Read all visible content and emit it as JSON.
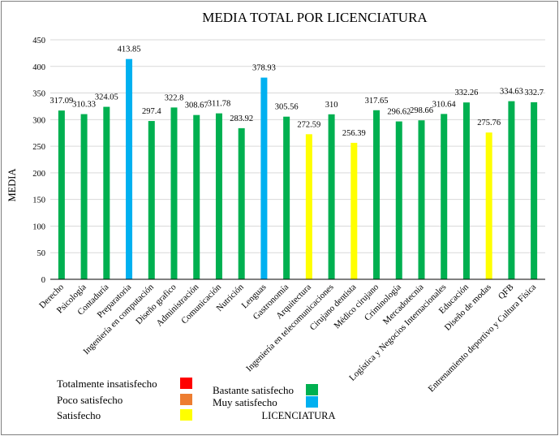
{
  "chart_data": {
    "type": "bar",
    "title": "MEDIA TOTAL POR LICENCIATURA",
    "xlabel": "LICENCIATURA",
    "ylabel": "MEDIA",
    "ylim": [
      0,
      450
    ],
    "yticks": [
      0,
      50,
      100,
      150,
      200,
      250,
      300,
      350,
      400,
      450
    ],
    "grid": true,
    "categories": [
      "Derecho",
      "Psicología",
      "Contaduría",
      "Preparatoria",
      "Ingeniería en computación",
      "Diseño grafico",
      "Administración",
      "Comunicación",
      "Nutrición",
      "Lenguas",
      "Gastronomía",
      "Arquitectura",
      "Ingeniería en telecomunicaciones",
      "Cirujano dentista",
      "Médico cirujano",
      "Criminología",
      "Mercadotecnia",
      "Logística y Negocios Internacionales",
      "Educación",
      "Diseño de modas",
      "QFB",
      "Entrenamiento deportivo y Cultura Física"
    ],
    "values": [
      317.09,
      310.33,
      324.05,
      413.85,
      297.4,
      322.8,
      308.67,
      311.78,
      283.92,
      378.93,
      305.56,
      272.59,
      310,
      256.39,
      317.65,
      296.62,
      298.66,
      310.64,
      332.26,
      275.76,
      334.63,
      332.7
    ],
    "value_labels": [
      "317.09",
      "310.33",
      "324.05",
      "413.85",
      "297.4",
      "322.8",
      "308.67",
      "311.78",
      "283.92",
      "378.93",
      "305.56",
      "272.59",
      "310",
      "256.39",
      "317.65",
      "296.62",
      "298.66",
      "310.64",
      "332.26",
      "275.76",
      "334.63",
      "332.7"
    ],
    "bar_levels": [
      "Bastante satisfecho",
      "Bastante satisfecho",
      "Bastante satisfecho",
      "Muy satisfecho",
      "Bastante satisfecho",
      "Bastante satisfecho",
      "Bastante satisfecho",
      "Bastante satisfecho",
      "Bastante satisfecho",
      "Muy satisfecho",
      "Bastante satisfecho",
      "Satisfecho",
      "Bastante satisfecho",
      "Satisfecho",
      "Bastante satisfecho",
      "Bastante satisfecho",
      "Bastante satisfecho",
      "Bastante satisfecho",
      "Bastante satisfecho",
      "Satisfecho",
      "Bastante satisfecho",
      "Bastante satisfecho"
    ],
    "legend": {
      "placement": "bottom-left",
      "entries": [
        {
          "label": "Totalmente insatisfecho",
          "color": "#ff0000"
        },
        {
          "label": "Poco satisfecho",
          "color": "#ed7d31"
        },
        {
          "label": "Satisfecho",
          "color": "#ffff00"
        },
        {
          "label": "Bastante satisfecho",
          "color": "#00b050"
        },
        {
          "label": "Muy satisfecho",
          "color": "#00b0f0"
        }
      ]
    }
  }
}
